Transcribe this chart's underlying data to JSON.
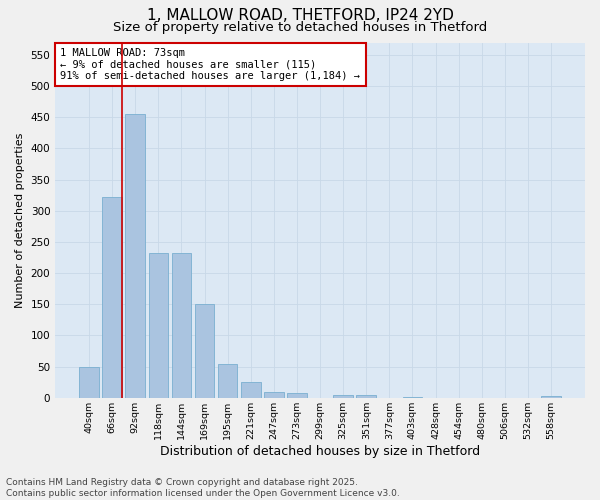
{
  "title": "1, MALLOW ROAD, THETFORD, IP24 2YD",
  "subtitle": "Size of property relative to detached houses in Thetford",
  "xlabel": "Distribution of detached houses by size in Thetford",
  "ylabel": "Number of detached properties",
  "categories": [
    "40sqm",
    "66sqm",
    "92sqm",
    "118sqm",
    "144sqm",
    "169sqm",
    "195sqm",
    "221sqm",
    "247sqm",
    "273sqm",
    "299sqm",
    "325sqm",
    "351sqm",
    "377sqm",
    "403sqm",
    "428sqm",
    "454sqm",
    "480sqm",
    "506sqm",
    "532sqm",
    "558sqm"
  ],
  "values": [
    50,
    322,
    455,
    232,
    232,
    150,
    54,
    26,
    10,
    8,
    0,
    4,
    4,
    0,
    2,
    0,
    0,
    0,
    0,
    0,
    3
  ],
  "bar_color": "#aac4e0",
  "bar_edge_color": "#7aafd0",
  "vline_x_index": 1,
  "vline_color": "#cc0000",
  "annotation_text": "1 MALLOW ROAD: 73sqm\n← 9% of detached houses are smaller (115)\n91% of semi-detached houses are larger (1,184) →",
  "annotation_box_color": "#ffffff",
  "annotation_box_edge": "#cc0000",
  "annotation_fontsize": 7.5,
  "ylim": [
    0,
    570
  ],
  "yticks": [
    0,
    50,
    100,
    150,
    200,
    250,
    300,
    350,
    400,
    450,
    500,
    550
  ],
  "grid_color": "#c8d8e8",
  "bg_color": "#dce8f4",
  "fig_bg_color": "#f0f0f0",
  "footer": "Contains HM Land Registry data © Crown copyright and database right 2025.\nContains public sector information licensed under the Open Government Licence v3.0.",
  "title_fontsize": 11,
  "subtitle_fontsize": 9.5,
  "xlabel_fontsize": 9,
  "ylabel_fontsize": 8,
  "footer_fontsize": 6.5
}
